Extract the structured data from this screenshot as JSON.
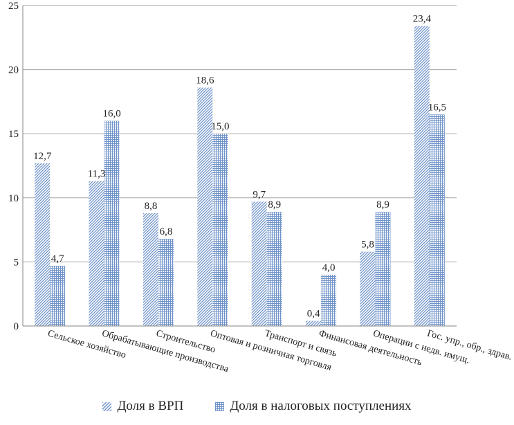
{
  "chart_data": {
    "type": "bar",
    "categories": [
      "Сельское хозяйство",
      "Обрабатывающие производства",
      "Строительство",
      "Оптовая и розничная торговля",
      "Транспорт и связь",
      "Финансовая деятельность",
      "Операции с недв. имущ.",
      "Гос. упр., обр., здрав."
    ],
    "series": [
      {
        "name": "Доля в ВРП",
        "values": [
          12.7,
          11.3,
          8.8,
          18.6,
          9.7,
          0.4,
          5.8,
          23.4
        ],
        "labels": [
          "12,7",
          "11,3",
          "8,8",
          "18,6",
          "9,7",
          "0,4",
          "5,8",
          "23,4"
        ],
        "pattern": "diagonal-hatch"
      },
      {
        "name": "Доля в налоговых  поступлениях",
        "values": [
          4.7,
          16.0,
          6.8,
          15.0,
          8.9,
          4.0,
          8.9,
          16.5
        ],
        "labels": [
          "4,7",
          "16,0",
          "6,8",
          "15,0",
          "8,9",
          "4,0",
          "8,9",
          "16,5"
        ],
        "pattern": "grid-hatch"
      }
    ],
    "yticks": [
      "0",
      "5",
      "10",
      "15",
      "20",
      "25"
    ],
    "ylim": [
      0,
      25
    ],
    "grid": true,
    "legend_position": "bottom",
    "colors": {
      "bar": "#6f93c9",
      "grid": "#a6a6a6",
      "axis": "#868686"
    }
  }
}
